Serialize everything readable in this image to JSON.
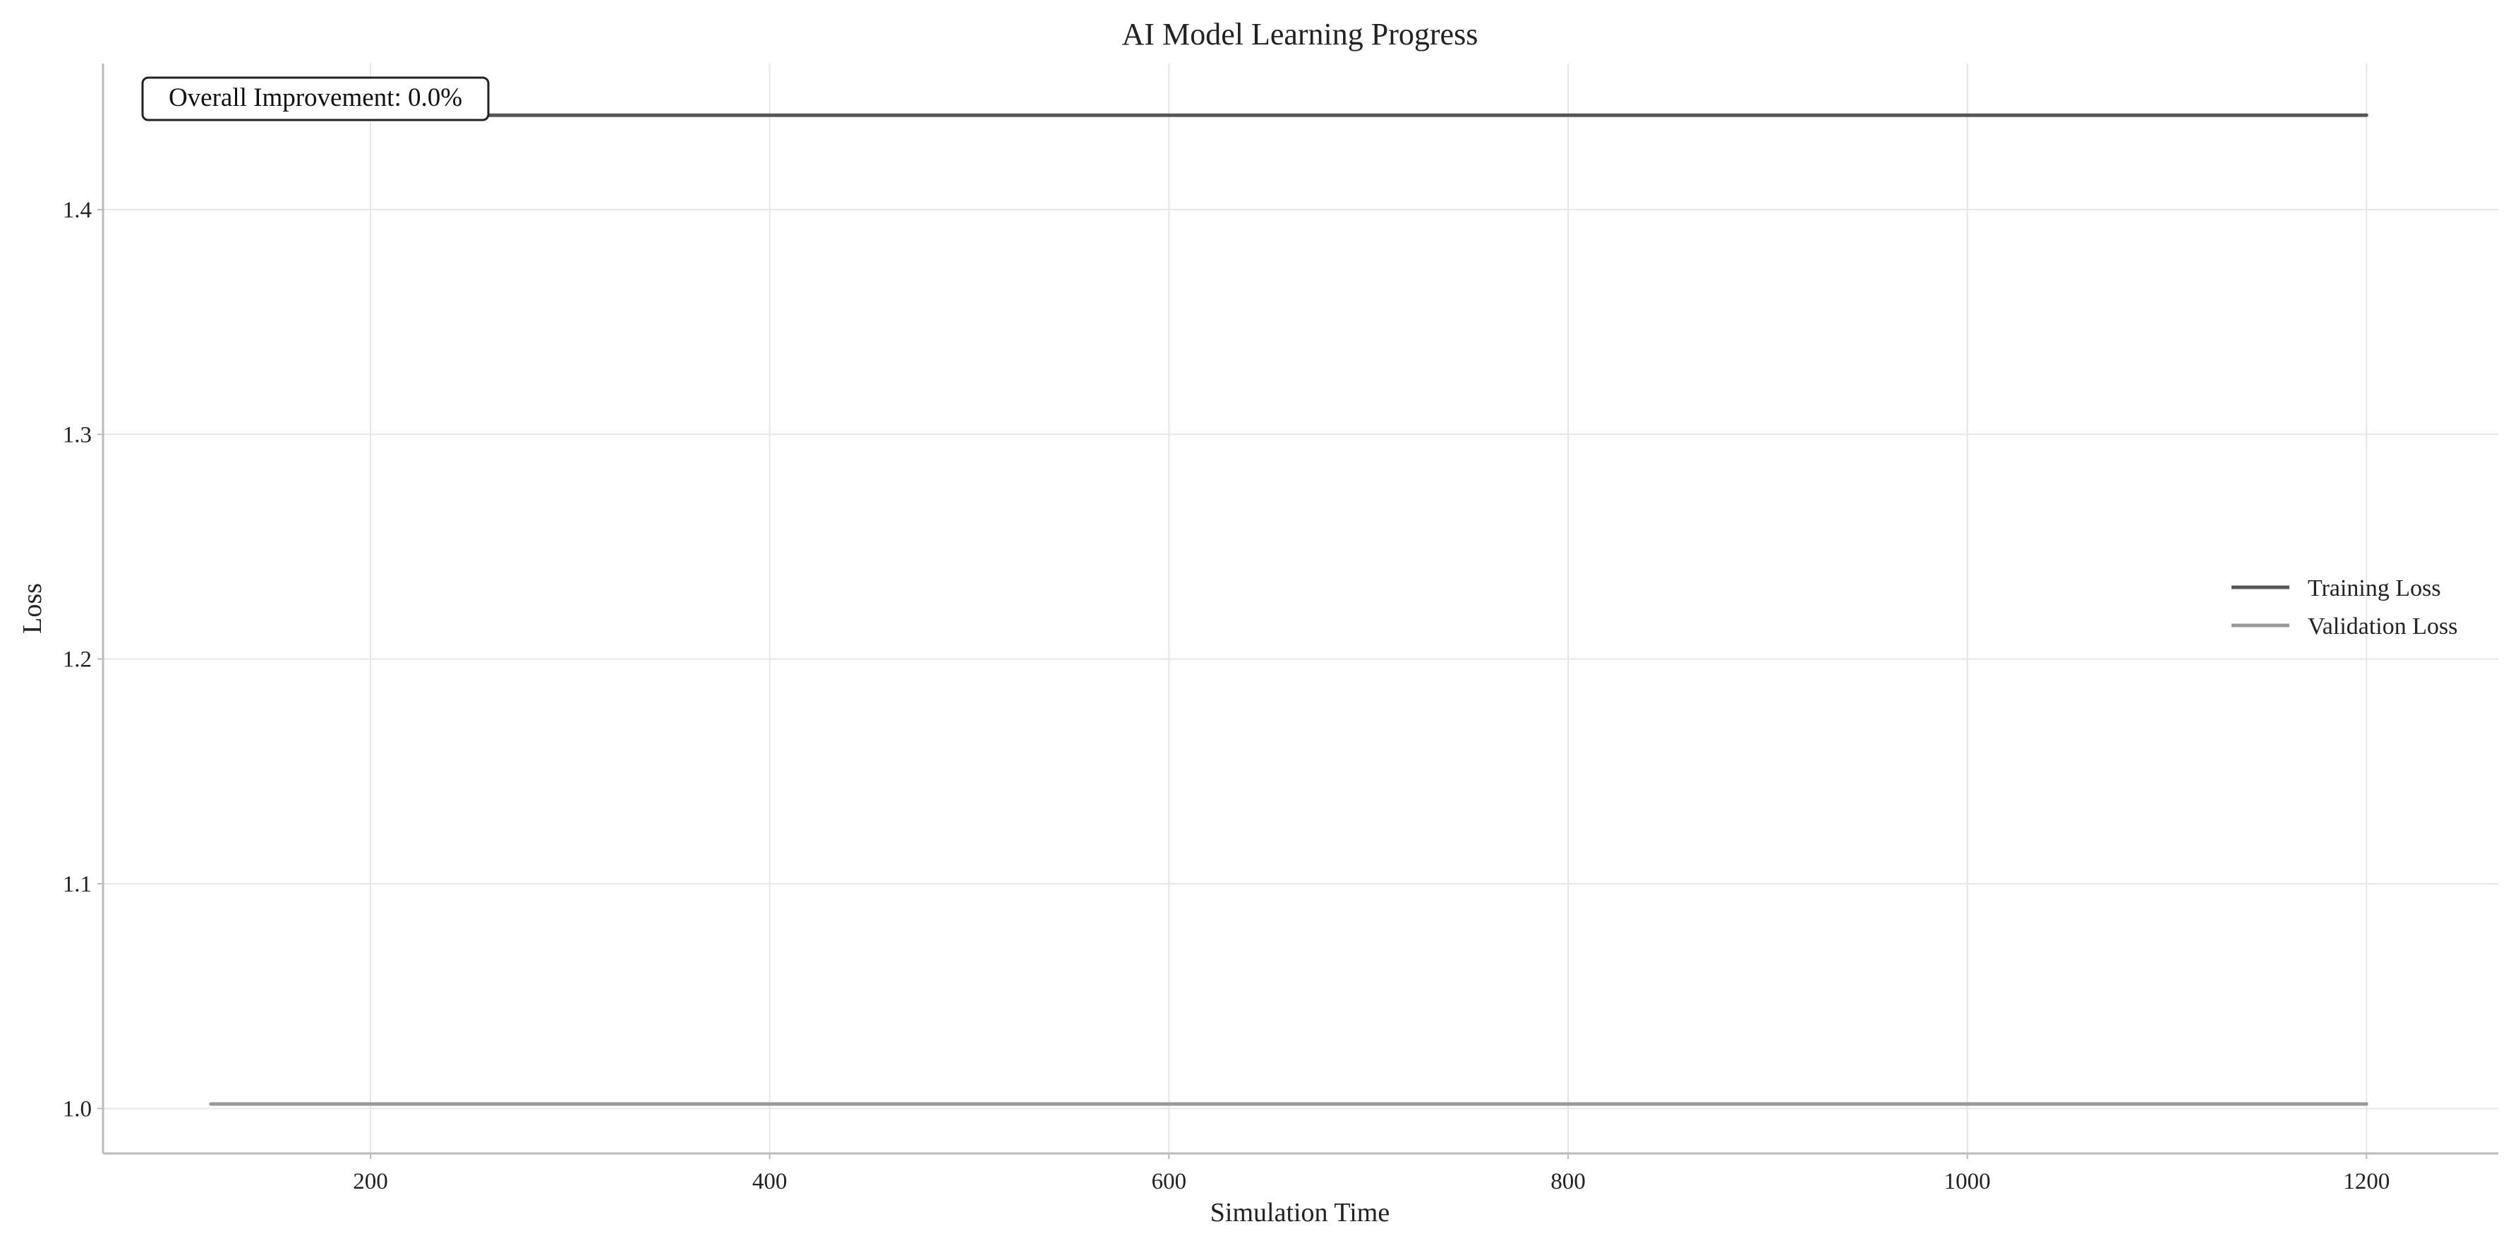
{
  "chart_data": {
    "type": "line",
    "title": "AI Model Learning Progress",
    "xlabel": "Simulation Time",
    "ylabel": "Loss",
    "xlim": [
      66,
      1266
    ],
    "ylim": [
      0.98,
      1.465
    ],
    "xticks": [
      200,
      400,
      600,
      800,
      1000,
      1200
    ],
    "yticks": [
      1.0,
      1.1,
      1.2,
      1.3,
      1.4
    ],
    "grid": true,
    "legend_position": "center-right",
    "annotation": "Overall Improvement: 0.0%",
    "series": [
      {
        "name": "Training Loss",
        "color": "#555555",
        "x": [
          120,
          1200
        ],
        "y": [
          1.442,
          1.442
        ]
      },
      {
        "name": "Validation Loss",
        "color": "#999999",
        "x": [
          120,
          1200
        ],
        "y": [
          1.002,
          1.002
        ]
      }
    ]
  }
}
